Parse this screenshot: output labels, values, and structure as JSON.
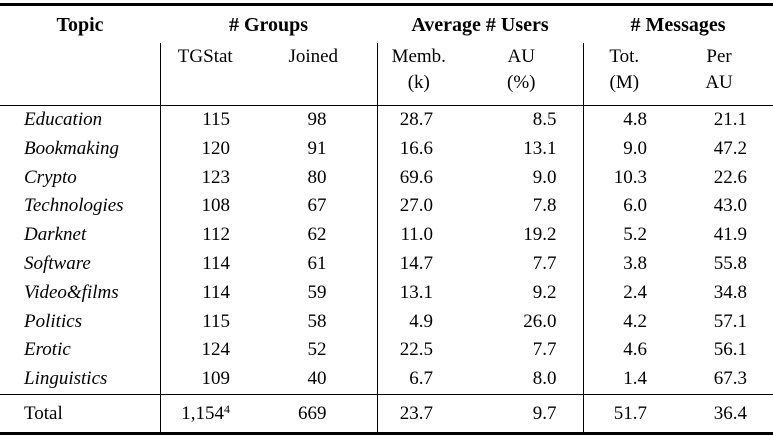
{
  "table": {
    "col_groups": [
      {
        "label": "Topic"
      },
      {
        "label": "# Groups"
      },
      {
        "label": "Average # Users"
      },
      {
        "label": "# Messages"
      }
    ],
    "sub_headers": {
      "tgstat": {
        "line1": "TGStat",
        "line2": ""
      },
      "joined": {
        "line1": "Joined",
        "line2": ""
      },
      "memb_k": {
        "line1": "Memb.",
        "line2": "(k)"
      },
      "au_pct": {
        "line1": "AU",
        "line2": "(%)"
      },
      "tot_m": {
        "line1": "Tot.",
        "line2": "(M)"
      },
      "per_au": {
        "line1": "Per",
        "line2": "AU"
      }
    },
    "rows": [
      {
        "topic": "Education",
        "tgstat": "115",
        "joined": "98",
        "memb_k": "28.7",
        "au_pct": "8.5",
        "tot_m": "4.8",
        "per_au": "21.1"
      },
      {
        "topic": "Bookmaking",
        "tgstat": "120",
        "joined": "91",
        "memb_k": "16.6",
        "au_pct": "13.1",
        "tot_m": "9.0",
        "per_au": "47.2"
      },
      {
        "topic": "Crypto",
        "tgstat": "123",
        "joined": "80",
        "memb_k": "69.6",
        "au_pct": "9.0",
        "tot_m": "10.3",
        "per_au": "22.6"
      },
      {
        "topic": "Technologies",
        "tgstat": "108",
        "joined": "67",
        "memb_k": "27.0",
        "au_pct": "7.8",
        "tot_m": "6.0",
        "per_au": "43.0"
      },
      {
        "topic": "Darknet",
        "tgstat": "112",
        "joined": "62",
        "memb_k": "11.0",
        "au_pct": "19.2",
        "tot_m": "5.2",
        "per_au": "41.9"
      },
      {
        "topic": "Software",
        "tgstat": "114",
        "joined": "61",
        "memb_k": "14.7",
        "au_pct": "7.7",
        "tot_m": "3.8",
        "per_au": "55.8"
      },
      {
        "topic": "Video&films",
        "tgstat": "114",
        "joined": "59",
        "memb_k": "13.1",
        "au_pct": "9.2",
        "tot_m": "2.4",
        "per_au": "34.8"
      },
      {
        "topic": "Politics",
        "tgstat": "115",
        "joined": "58",
        "memb_k": "4.9",
        "au_pct": "26.0",
        "tot_m": "4.2",
        "per_au": "57.1"
      },
      {
        "topic": "Erotic",
        "tgstat": "124",
        "joined": "52",
        "memb_k": "22.5",
        "au_pct": "7.7",
        "tot_m": "4.6",
        "per_au": "56.1"
      },
      {
        "topic": "Linguistics",
        "tgstat": "109",
        "joined": "40",
        "memb_k": "6.7",
        "au_pct": "8.0",
        "tot_m": "1.4",
        "per_au": "67.3"
      }
    ],
    "total": {
      "label": "Total",
      "tgstat": "1,154",
      "tgstat_footnote": "4",
      "joined": "669",
      "memb_k": "23.7",
      "au_pct": "9.7",
      "tot_m": "51.7",
      "per_au": "36.4"
    },
    "colors": {
      "text": "#000000",
      "background": "#ffffff",
      "rule": "#000000"
    }
  }
}
